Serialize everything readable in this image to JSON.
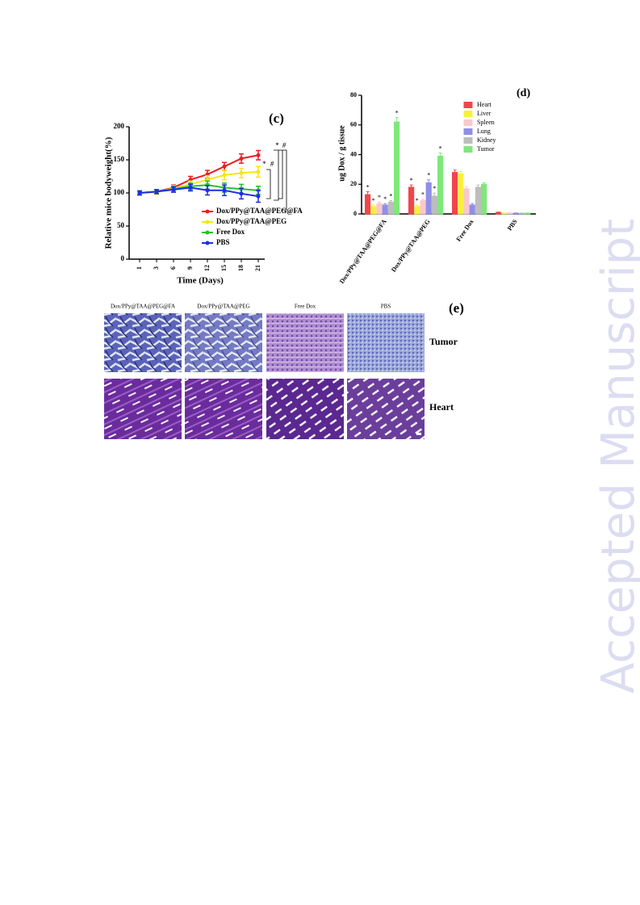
{
  "watermark": "Accepted Manuscript",
  "chart_data": [
    {
      "type": "line",
      "label": "(c)",
      "y_label": "Relative mice bodyweight(%)",
      "x_label": "Time (Days)",
      "categories": [
        "1",
        "3",
        "6",
        "9",
        "12",
        "15",
        "18",
        "21"
      ],
      "ylim": [
        0,
        200
      ],
      "yticks": [
        0,
        50,
        100,
        150,
        200
      ],
      "series": [
        {
          "name": "Dox/PPy@TAA@PEG@FA",
          "color": "#ee1c25",
          "values": [
            100,
            102,
            108,
            120,
            128,
            140,
            152,
            157
          ],
          "errors": [
            3,
            3,
            4,
            5,
            6,
            6,
            7,
            7
          ]
        },
        {
          "name": "Dox/PPy@TAA@PEG",
          "color": "#f5e616",
          "values": [
            100,
            101,
            107,
            113,
            120,
            127,
            130,
            132
          ],
          "errors": [
            3,
            3,
            4,
            5,
            6,
            7,
            7,
            8
          ]
        },
        {
          "name": "Free Dox",
          "color": "#22c22a",
          "values": [
            100,
            102,
            106,
            110,
            112,
            108,
            106,
            104
          ],
          "errors": [
            3,
            3,
            4,
            5,
            6,
            7,
            7,
            6
          ]
        },
        {
          "name": "PBS",
          "color": "#1c2ee6",
          "values": [
            100,
            102,
            105,
            108,
            104,
            104,
            99,
            95
          ],
          "errors": [
            3,
            3,
            4,
            5,
            7,
            8,
            8,
            9
          ]
        }
      ],
      "annotations": [
        "*",
        "#",
        "*",
        "#"
      ]
    },
    {
      "type": "bar",
      "label": "(d)",
      "y_label": "ug Dox / g tissue",
      "significance": "*",
      "categories": [
        "Dox/PPy@TAA@PEG@FA",
        "Dox/PPy@TAA@PEG",
        "Free Dox",
        "PBS"
      ],
      "ylim": [
        0,
        80
      ],
      "yticks": [
        0,
        20,
        40,
        60,
        80
      ],
      "series": [
        {
          "name": "Heart",
          "color": "#f0464b",
          "values": [
            13,
            18,
            28,
            1
          ],
          "errors": [
            2,
            1.5,
            1.5,
            0.3
          ]
        },
        {
          "name": "Liver",
          "color": "#f7f040",
          "values": [
            5,
            5,
            27,
            0.5
          ],
          "errors": [
            1,
            1,
            1.5,
            0.2
          ]
        },
        {
          "name": "Spleen",
          "color": "#f9c8cc",
          "values": [
            7,
            9,
            17,
            0.5
          ],
          "errors": [
            1,
            1,
            1.5,
            0.2
          ]
        },
        {
          "name": "Lung",
          "color": "#8f8fe8",
          "values": [
            6,
            21,
            6,
            0.5
          ],
          "errors": [
            1,
            2,
            1,
            0.2
          ]
        },
        {
          "name": "Kidney",
          "color": "#bdbdbd",
          "values": [
            8,
            12,
            18,
            0.5
          ],
          "errors": [
            1,
            2,
            1.5,
            0.2
          ]
        },
        {
          "name": "Tumor",
          "color": "#7ee87a",
          "values": [
            62,
            39,
            20,
            0.5
          ],
          "errors": [
            3,
            2,
            1,
            0.2
          ]
        }
      ]
    }
  ],
  "panel_e": {
    "label": "(e)",
    "columns": [
      "Dox/PPy@TAA@PEG@FA",
      "Dox/PPy@TAA@PEG",
      "Free Dox",
      "PBS"
    ],
    "rows": [
      "Tumor",
      "Heart"
    ]
  }
}
